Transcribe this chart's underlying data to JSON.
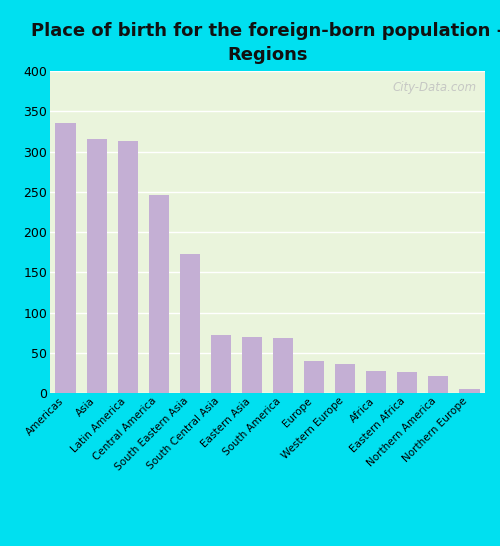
{
  "title": "Place of birth for the foreign-born population -\nRegions",
  "categories": [
    "Americas",
    "Asia",
    "Latin America",
    "Central America",
    "South Eastern Asia",
    "South Central Asia",
    "Eastern Asia",
    "South America",
    "Europe",
    "Western Europe",
    "Africa",
    "Eastern Africa",
    "Northern America",
    "Northern Europe"
  ],
  "values": [
    335,
    316,
    313,
    246,
    173,
    72,
    70,
    68,
    40,
    36,
    27,
    26,
    21,
    5
  ],
  "bar_color": "#c4afd4",
  "background_outer": "#00e0f0",
  "background_inner": "#eaf4dc",
  "ylim": [
    0,
    400
  ],
  "yticks": [
    0,
    50,
    100,
    150,
    200,
    250,
    300,
    350,
    400
  ],
  "title_fontsize": 13,
  "tick_label_fontsize": 7.5,
  "ylabel_fontsize": 9,
  "watermark": "City-Data.com",
  "watermark_color": "#c0c0c0",
  "grid_color": "#ffffff",
  "figsize": [
    5.0,
    5.46
  ],
  "dpi": 100
}
